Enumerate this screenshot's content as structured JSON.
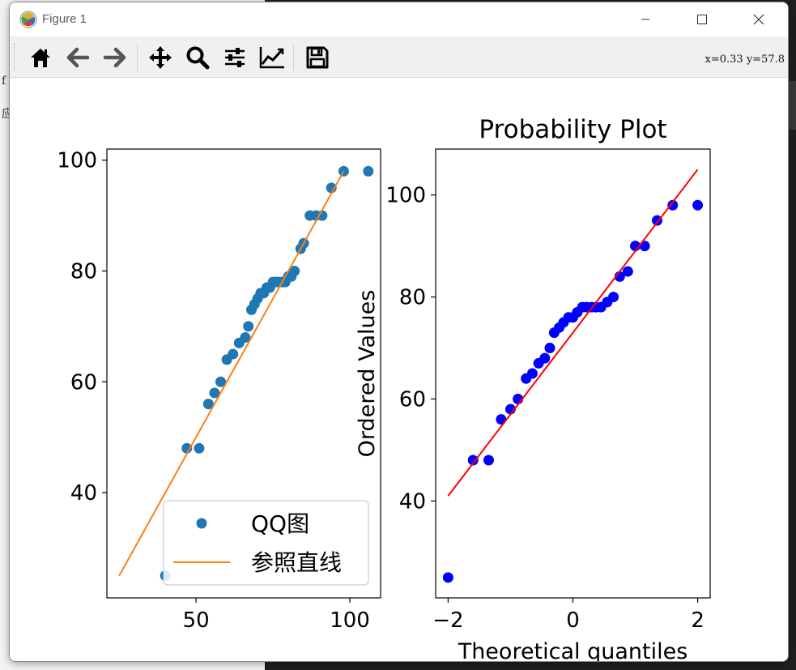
{
  "window": {
    "title": "Figure 1",
    "coordinates": "x=0.33 y=57.8"
  },
  "toolbar": {
    "buttons": [
      {
        "name": "home-button",
        "icon": "home-icon"
      },
      {
        "name": "back-button",
        "icon": "arrow-left-icon"
      },
      {
        "name": "forward-button",
        "icon": "arrow-right-icon"
      },
      {
        "name": "pan-button",
        "icon": "move-icon"
      },
      {
        "name": "zoom-button",
        "icon": "magnifier-icon"
      },
      {
        "name": "configure-subplots-button",
        "icon": "sliders-icon"
      },
      {
        "name": "edit-axes-button",
        "icon": "line-chart-icon"
      },
      {
        "name": "save-button",
        "icon": "floppy-disk-icon"
      }
    ]
  },
  "background": {
    "fragment_1": "f",
    "fragment_2": "应"
  },
  "chart_data": [
    {
      "type": "scatter",
      "title": "",
      "xlabel": "",
      "ylabel": "",
      "xlim": [
        21,
        110
      ],
      "ylim": [
        21,
        102
      ],
      "xticks": [
        50,
        100
      ],
      "yticks": [
        40,
        60,
        80,
        100
      ],
      "grid": false,
      "legend_placement": "lower-right",
      "series": [
        {
          "name": "QQ图",
          "kind": "scatter",
          "color": "#1f77b4",
          "x": [
            40,
            47,
            51,
            54,
            56,
            58,
            60,
            62,
            64,
            66,
            67,
            68,
            69,
            70,
            71,
            72,
            73,
            74,
            75,
            76,
            77,
            78,
            79,
            80,
            81,
            82,
            84,
            85,
            87,
            89,
            91,
            94,
            98,
            106
          ],
          "y": [
            25,
            48,
            48,
            56,
            58,
            60,
            64,
            65,
            67,
            68,
            70,
            73,
            74,
            75,
            76,
            76,
            77,
            77,
            78,
            78,
            78,
            78,
            78,
            79,
            79,
            80,
            84,
            85,
            90,
            90,
            90,
            95,
            98,
            98
          ]
        },
        {
          "name": "参照直线",
          "kind": "line",
          "color": "#ff7f0e",
          "x": [
            25,
            98
          ],
          "y": [
            25,
            98
          ]
        }
      ]
    },
    {
      "type": "scatter",
      "title": "Probability Plot",
      "xlabel": "Theoretical quantiles",
      "ylabel": "Ordered Values",
      "xlim": [
        -2.2,
        2.2
      ],
      "ylim": [
        21,
        109
      ],
      "xticks": [
        -2,
        0,
        2
      ],
      "yticks": [
        40,
        60,
        80,
        100
      ],
      "grid": false,
      "series": [
        {
          "kind": "scatter",
          "color": "#0000ff",
          "x": [
            -2.0,
            -1.6,
            -1.35,
            -1.15,
            -1.0,
            -0.88,
            -0.75,
            -0.65,
            -0.55,
            -0.45,
            -0.37,
            -0.3,
            -0.22,
            -0.15,
            -0.07,
            0.0,
            0.07,
            0.15,
            0.22,
            0.3,
            0.37,
            0.45,
            0.55,
            0.65,
            0.75,
            0.88,
            1.0,
            1.15,
            1.35,
            1.6,
            2.0
          ],
          "y": [
            25,
            48,
            48,
            56,
            58,
            60,
            64,
            65,
            67,
            68,
            70,
            73,
            74,
            75,
            76,
            76,
            77,
            78,
            78,
            78,
            78,
            78,
            79,
            80,
            84,
            85,
            90,
            90,
            95,
            98,
            98
          ]
        },
        {
          "kind": "line",
          "color": "#ff0000",
          "x": [
            -2.0,
            2.0
          ],
          "y": [
            41,
            105
          ]
        }
      ]
    }
  ]
}
